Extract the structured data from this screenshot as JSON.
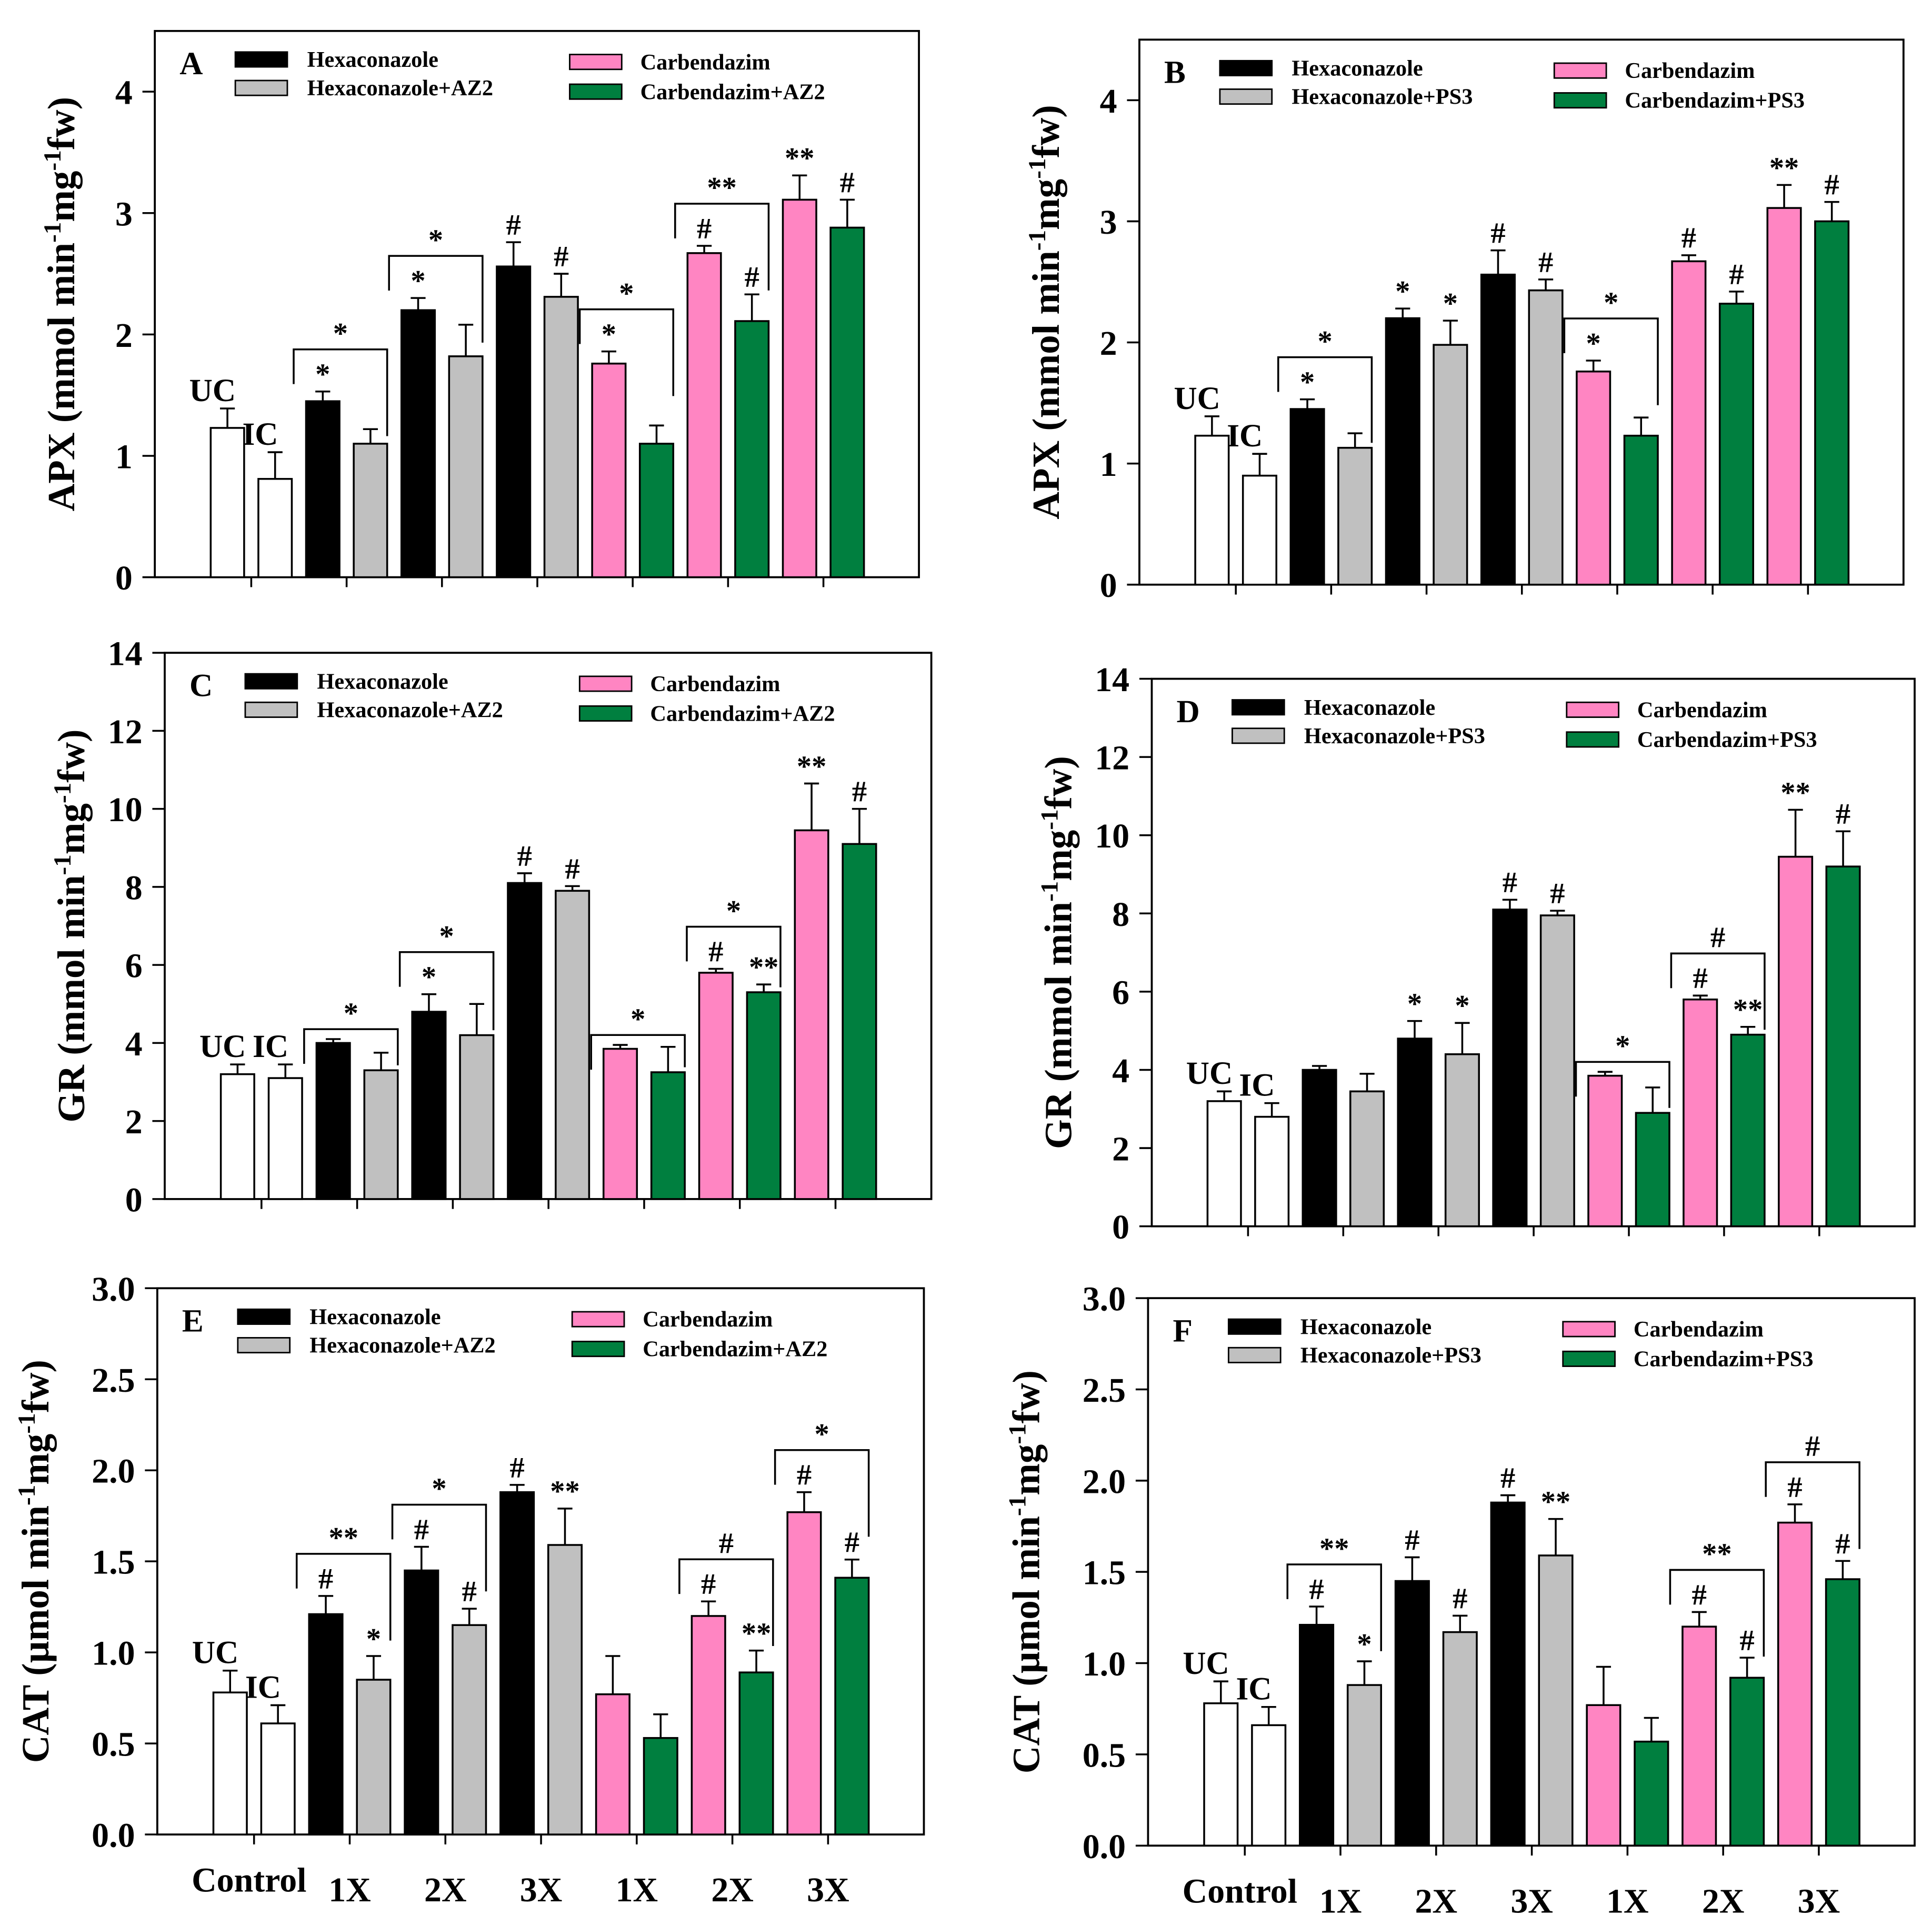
{
  "colors": {
    "Control": "#ffffff",
    "Hexaconazole": "#000000",
    "HexaBio": "#c0c0c0",
    "Carbendazim": "#ff85c2",
    "CarbBio": "#007f3f"
  },
  "chart_data": [
    {
      "type": "bar",
      "panel": "A",
      "ylim": [
        0,
        4.5
      ],
      "yticks": [
        "0",
        "1",
        "2",
        "3",
        "4"
      ],
      "ytick_values": [
        0,
        1,
        2,
        3,
        4
      ],
      "ylabel_parts": [
        "APX (mmol min",
        "-1",
        "mg",
        "-1",
        "fw)"
      ],
      "legend": [
        "Hexaconazole",
        "Hexaconazole+AZ2",
        "Carbendazim",
        "Carbendazim+AZ2"
      ],
      "bars": [
        {
          "name": "UC",
          "group": "Control",
          "values": 1.23,
          "err": 0.16,
          "label": "UC"
        },
        {
          "name": "IC",
          "group": "Control",
          "values": 0.81,
          "err": 0.22,
          "label": "IC"
        },
        {
          "name": "Hexaconazole 1X",
          "group": "Hexaconazole",
          "values": 1.45,
          "err": 0.08,
          "label": "*"
        },
        {
          "name": "Hexaconazole+AZ2 1X",
          "group": "HexaBio",
          "values": 1.1,
          "err": 0.12,
          "label": ""
        },
        {
          "name": "Hexaconazole 2X",
          "group": "Hexaconazole",
          "values": 2.2,
          "err": 0.1,
          "label": "*"
        },
        {
          "name": "Hexaconazole+AZ2 2X",
          "group": "HexaBio",
          "values": 1.82,
          "err": 0.26,
          "label": ""
        },
        {
          "name": "Hexaconazole 3X",
          "group": "Hexaconazole",
          "values": 2.56,
          "err": 0.2,
          "label": "#"
        },
        {
          "name": "Hexaconazole+AZ2 3X",
          "group": "HexaBio",
          "values": 2.31,
          "err": 0.19,
          "label": "#"
        },
        {
          "name": "Carbendazim 1X",
          "group": "Carbendazim",
          "values": 1.76,
          "err": 0.1,
          "label": "*"
        },
        {
          "name": "Carbendazim+AZ2 1X",
          "group": "CarbBio",
          "values": 1.1,
          "err": 0.15,
          "label": ""
        },
        {
          "name": "Carbendazim 2X",
          "group": "Carbendazim",
          "values": 2.67,
          "err": 0.06,
          "label": "#"
        },
        {
          "name": "Carbendazim+AZ2 2X",
          "group": "CarbBio",
          "values": 2.11,
          "err": 0.22,
          "label": "#"
        },
        {
          "name": "Carbendazim 3X",
          "group": "Carbendazim",
          "values": 3.11,
          "err": 0.2,
          "label": "**"
        },
        {
          "name": "Carbendazim+AZ2 3X",
          "group": "CarbBio",
          "values": 2.88,
          "err": 0.23,
          "label": "#"
        }
      ],
      "brackets": [
        {
          "from": 2,
          "to": 3,
          "label": "*"
        },
        {
          "from": 4,
          "to": 5,
          "label": "*"
        },
        {
          "from": 8,
          "to": 9,
          "label": "*"
        },
        {
          "from": 10,
          "to": 11,
          "label": "**"
        }
      ],
      "xticks": []
    },
    {
      "type": "bar",
      "panel": "B",
      "ylim": [
        0,
        4.5
      ],
      "yticks": [
        "0",
        "1",
        "2",
        "3",
        "4"
      ],
      "ytick_values": [
        0,
        1,
        2,
        3,
        4
      ],
      "ylabel_parts": [
        "APX (mmol min",
        "-1",
        "mg",
        "-1",
        "fw)"
      ],
      "legend": [
        "Hexaconazole",
        "Hexaconazole+PS3",
        "Carbendazim",
        "Carbendazim+PS3"
      ],
      "bars": [
        {
          "name": "UC",
          "group": "Control",
          "values": 1.23,
          "err": 0.16,
          "label": "UC"
        },
        {
          "name": "IC",
          "group": "Control",
          "values": 0.9,
          "err": 0.18,
          "label": "IC"
        },
        {
          "name": "Hexaconazole 1X",
          "group": "Hexaconazole",
          "values": 1.45,
          "err": 0.08,
          "label": "*"
        },
        {
          "name": "Hexaconazole+PS3 1X",
          "group": "HexaBio",
          "values": 1.13,
          "err": 0.12,
          "label": ""
        },
        {
          "name": "Hexaconazole 2X",
          "group": "Hexaconazole",
          "values": 2.2,
          "err": 0.08,
          "label": "*"
        },
        {
          "name": "Hexaconazole+PS3 2X",
          "group": "HexaBio",
          "values": 1.98,
          "err": 0.2,
          "label": "*"
        },
        {
          "name": "Hexaconazole 3X",
          "group": "Hexaconazole",
          "values": 2.56,
          "err": 0.2,
          "label": "#"
        },
        {
          "name": "Hexaconazole+PS3 3X",
          "group": "HexaBio",
          "values": 2.43,
          "err": 0.09,
          "label": "#"
        },
        {
          "name": "Carbendazim 1X",
          "group": "Carbendazim",
          "values": 1.76,
          "err": 0.09,
          "label": "*"
        },
        {
          "name": "Carbendazim+PS3 1X",
          "group": "CarbBio",
          "values": 1.23,
          "err": 0.15,
          "label": ""
        },
        {
          "name": "Carbendazim 2X",
          "group": "Carbendazim",
          "values": 2.67,
          "err": 0.05,
          "label": "#"
        },
        {
          "name": "Carbendazim+PS3 2X",
          "group": "CarbBio",
          "values": 2.32,
          "err": 0.1,
          "label": "#"
        },
        {
          "name": "Carbendazim 3X",
          "group": "Carbendazim",
          "values": 3.11,
          "err": 0.19,
          "label": "**"
        },
        {
          "name": "Carbendazim+PS3 3X",
          "group": "CarbBio",
          "values": 3.0,
          "err": 0.16,
          "label": "#"
        }
      ],
      "brackets": [
        {
          "from": 2,
          "to": 3,
          "label": "*"
        },
        {
          "from": 8,
          "to": 9,
          "label": "*"
        }
      ],
      "xticks": []
    },
    {
      "type": "bar",
      "panel": "C",
      "ylim": [
        0,
        14
      ],
      "yticks": [
        "0",
        "2",
        "4",
        "6",
        "8",
        "10",
        "12",
        "14"
      ],
      "ytick_values": [
        0,
        2,
        4,
        6,
        8,
        10,
        12,
        14
      ],
      "ylabel_parts": [
        "GR (mmol min",
        "-1",
        "mg",
        "-1",
        "fw)"
      ],
      "legend": [
        "Hexaconazole",
        "Hexaconazole+AZ2",
        "Carbendazim",
        "Carbendazim+AZ2"
      ],
      "bars": [
        {
          "name": "UC",
          "group": "Control",
          "values": 3.2,
          "err": 0.25,
          "label": "UC"
        },
        {
          "name": "IC",
          "group": "Control",
          "values": 3.1,
          "err": 0.35,
          "label": "IC"
        },
        {
          "name": "Hexaconazole 1X",
          "group": "Hexaconazole",
          "values": 4.0,
          "err": 0.1,
          "label": ""
        },
        {
          "name": "Hexaconazole+AZ2 1X",
          "group": "HexaBio",
          "values": 3.3,
          "err": 0.45,
          "label": ""
        },
        {
          "name": "Hexaconazole 2X",
          "group": "Hexaconazole",
          "values": 4.8,
          "err": 0.45,
          "label": "*"
        },
        {
          "name": "Hexaconazole+AZ2 2X",
          "group": "HexaBio",
          "values": 4.2,
          "err": 0.8,
          "label": ""
        },
        {
          "name": "Hexaconazole 3X",
          "group": "Hexaconazole",
          "values": 8.1,
          "err": 0.25,
          "label": "#"
        },
        {
          "name": "Hexaconazole+AZ2 3X",
          "group": "HexaBio",
          "values": 7.9,
          "err": 0.12,
          "label": "#"
        },
        {
          "name": "Carbendazim 1X",
          "group": "Carbendazim",
          "values": 3.85,
          "err": 0.1,
          "label": ""
        },
        {
          "name": "Carbendazim+AZ2 1X",
          "group": "CarbBio",
          "values": 3.25,
          "err": 0.65,
          "label": ""
        },
        {
          "name": "Carbendazim 2X",
          "group": "Carbendazim",
          "values": 5.8,
          "err": 0.1,
          "label": "#"
        },
        {
          "name": "Carbendazim+AZ2 2X",
          "group": "CarbBio",
          "values": 5.3,
          "err": 0.2,
          "label": "**"
        },
        {
          "name": "Carbendazim 3X",
          "group": "Carbendazim",
          "values": 9.45,
          "err": 1.2,
          "label": "**"
        },
        {
          "name": "Carbendazim+AZ2 3X",
          "group": "CarbBio",
          "values": 9.1,
          "err": 0.9,
          "label": "#"
        }
      ],
      "brackets": [
        {
          "from": 2,
          "to": 3,
          "label": "*"
        },
        {
          "from": 4,
          "to": 5,
          "label": "*"
        },
        {
          "from": 8,
          "to": 9,
          "label": "*"
        },
        {
          "from": 10,
          "to": 11,
          "label": "*"
        }
      ],
      "xticks": []
    },
    {
      "type": "bar",
      "panel": "D",
      "ylim": [
        0,
        14
      ],
      "yticks": [
        "0",
        "2",
        "4",
        "6",
        "8",
        "10",
        "12",
        "14"
      ],
      "ytick_values": [
        0,
        2,
        4,
        6,
        8,
        10,
        12,
        14
      ],
      "ylabel_parts": [
        "GR (mmol min",
        "-1",
        "mg",
        "-1",
        "fw)"
      ],
      "legend": [
        "Hexaconazole",
        "Hexaconazole+PS3",
        "Carbendazim",
        "Carbendazim+PS3"
      ],
      "bars": [
        {
          "name": "UC",
          "group": "Control",
          "values": 3.2,
          "err": 0.25,
          "label": "UC"
        },
        {
          "name": "IC",
          "group": "Control",
          "values": 2.8,
          "err": 0.35,
          "label": "IC"
        },
        {
          "name": "Hexaconazole 1X",
          "group": "Hexaconazole",
          "values": 4.0,
          "err": 0.1,
          "label": ""
        },
        {
          "name": "Hexaconazole+PS3 1X",
          "group": "HexaBio",
          "values": 3.45,
          "err": 0.45,
          "label": ""
        },
        {
          "name": "Hexaconazole 2X",
          "group": "Hexaconazole",
          "values": 4.8,
          "err": 0.45,
          "label": "*"
        },
        {
          "name": "Hexaconazole+PS3 2X",
          "group": "HexaBio",
          "values": 4.4,
          "err": 0.8,
          "label": "*"
        },
        {
          "name": "Hexaconazole 3X",
          "group": "Hexaconazole",
          "values": 8.1,
          "err": 0.25,
          "label": "#"
        },
        {
          "name": "Hexaconazole+PS3 3X",
          "group": "HexaBio",
          "values": 7.95,
          "err": 0.12,
          "label": "#"
        },
        {
          "name": "Carbendazim 1X",
          "group": "Carbendazim",
          "values": 3.85,
          "err": 0.1,
          "label": ""
        },
        {
          "name": "Carbendazim+PS3 1X",
          "group": "CarbBio",
          "values": 2.9,
          "err": 0.65,
          "label": ""
        },
        {
          "name": "Carbendazim 2X",
          "group": "Carbendazim",
          "values": 5.8,
          "err": 0.1,
          "label": "#"
        },
        {
          "name": "Carbendazim+PS3 2X",
          "group": "CarbBio",
          "values": 4.9,
          "err": 0.2,
          "label": "**"
        },
        {
          "name": "Carbendazim 3X",
          "group": "Carbendazim",
          "values": 9.45,
          "err": 1.2,
          "label": "**"
        },
        {
          "name": "Carbendazim+PS3 3X",
          "group": "CarbBio",
          "values": 9.2,
          "err": 0.9,
          "label": "#"
        }
      ],
      "brackets": [
        {
          "from": 8,
          "to": 9,
          "label": "*"
        },
        {
          "from": 10,
          "to": 11,
          "label": "#"
        }
      ],
      "xticks": []
    },
    {
      "type": "bar",
      "panel": "E",
      "ylim": [
        0,
        3.0
      ],
      "yticks": [
        "0.0",
        "0.5",
        "1.0",
        "1.5",
        "2.0",
        "2.5",
        "3.0"
      ],
      "ytick_values": [
        0,
        0.5,
        1,
        1.5,
        2,
        2.5,
        3
      ],
      "ylabel_parts": [
        "CAT (µmol min",
        "-1",
        "mg",
        "-1",
        "fw)"
      ],
      "legend": [
        "Hexaconazole",
        "Hexaconazole+AZ2",
        "Carbendazim",
        "Carbendazim+AZ2"
      ],
      "bars": [
        {
          "name": "UC",
          "group": "Control",
          "values": 0.78,
          "err": 0.12,
          "label": "UC"
        },
        {
          "name": "IC",
          "group": "Control",
          "values": 0.61,
          "err": 0.1,
          "label": "IC"
        },
        {
          "name": "Hexaconazole 1X",
          "group": "Hexaconazole",
          "values": 1.21,
          "err": 0.1,
          "label": "#"
        },
        {
          "name": "Hexaconazole+AZ2 1X",
          "group": "HexaBio",
          "values": 0.85,
          "err": 0.13,
          "label": "*"
        },
        {
          "name": "Hexaconazole 2X",
          "group": "Hexaconazole",
          "values": 1.45,
          "err": 0.13,
          "label": "#"
        },
        {
          "name": "Hexaconazole+AZ2 2X",
          "group": "HexaBio",
          "values": 1.15,
          "err": 0.09,
          "label": "#"
        },
        {
          "name": "Hexaconazole 3X",
          "group": "Hexaconazole",
          "values": 1.88,
          "err": 0.04,
          "label": "#"
        },
        {
          "name": "Hexaconazole+AZ2 3X",
          "group": "HexaBio",
          "values": 1.59,
          "err": 0.2,
          "label": "**"
        },
        {
          "name": "Carbendazim 1X",
          "group": "Carbendazim",
          "values": 0.77,
          "err": 0.21,
          "label": ""
        },
        {
          "name": "Carbendazim+AZ2 1X",
          "group": "CarbBio",
          "values": 0.53,
          "err": 0.13,
          "label": ""
        },
        {
          "name": "Carbendazim 2X",
          "group": "Carbendazim",
          "values": 1.2,
          "err": 0.08,
          "label": "#"
        },
        {
          "name": "Carbendazim+AZ2 2X",
          "group": "CarbBio",
          "values": 0.89,
          "err": 0.12,
          "label": "**"
        },
        {
          "name": "Carbendazim 3X",
          "group": "Carbendazim",
          "values": 1.77,
          "err": 0.11,
          "label": "#"
        },
        {
          "name": "Carbendazim+AZ2 3X",
          "group": "CarbBio",
          "values": 1.41,
          "err": 0.1,
          "label": "#"
        }
      ],
      "brackets": [
        {
          "from": 2,
          "to": 3,
          "label": "**"
        },
        {
          "from": 4,
          "to": 5,
          "label": "*"
        },
        {
          "from": 10,
          "to": 11,
          "label": "#"
        },
        {
          "from": 12,
          "to": 13,
          "label": "*"
        }
      ],
      "xticks": [
        "Control",
        "1X",
        "2X",
        "3X",
        "1X",
        "2X",
        "3X"
      ]
    },
    {
      "type": "bar",
      "panel": "F",
      "ylim": [
        0,
        3.0
      ],
      "yticks": [
        "0.0",
        "0.5",
        "1.0",
        "1.5",
        "2.0",
        "2.5",
        "3.0"
      ],
      "ytick_values": [
        0,
        0.5,
        1,
        1.5,
        2,
        2.5,
        3
      ],
      "ylabel_parts": [
        "CAT (µmol min",
        "-1",
        "mg",
        "-1",
        "fw)"
      ],
      "legend": [
        "Hexaconazole",
        "Hexaconazole+PS3",
        "Carbendazim",
        "Carbendazim+PS3"
      ],
      "bars": [
        {
          "name": "UC",
          "group": "Control",
          "values": 0.78,
          "err": 0.12,
          "label": "UC"
        },
        {
          "name": "IC",
          "group": "Control",
          "values": 0.66,
          "err": 0.1,
          "label": "IC"
        },
        {
          "name": "Hexaconazole 1X",
          "group": "Hexaconazole",
          "values": 1.21,
          "err": 0.1,
          "label": "#"
        },
        {
          "name": "Hexaconazole+PS3 1X",
          "group": "HexaBio",
          "values": 0.88,
          "err": 0.13,
          "label": "*"
        },
        {
          "name": "Hexaconazole 2X",
          "group": "Hexaconazole",
          "values": 1.45,
          "err": 0.13,
          "label": "#"
        },
        {
          "name": "Hexaconazole+PS3 2X",
          "group": "HexaBio",
          "values": 1.17,
          "err": 0.09,
          "label": "#"
        },
        {
          "name": "Hexaconazole 3X",
          "group": "Hexaconazole",
          "values": 1.88,
          "err": 0.04,
          "label": "#"
        },
        {
          "name": "Hexaconazole+PS3 3X",
          "group": "HexaBio",
          "values": 1.59,
          "err": 0.2,
          "label": "**"
        },
        {
          "name": "Carbendazim 1X",
          "group": "Carbendazim",
          "values": 0.77,
          "err": 0.21,
          "label": ""
        },
        {
          "name": "Carbendazim+PS3 1X",
          "group": "CarbBio",
          "values": 0.57,
          "err": 0.13,
          "label": ""
        },
        {
          "name": "Carbendazim 2X",
          "group": "Carbendazim",
          "values": 1.2,
          "err": 0.08,
          "label": "#"
        },
        {
          "name": "Carbendazim+PS3 2X",
          "group": "CarbBio",
          "values": 0.92,
          "err": 0.11,
          "label": "#"
        },
        {
          "name": "Carbendazim 3X",
          "group": "Carbendazim",
          "values": 1.77,
          "err": 0.1,
          "label": "#"
        },
        {
          "name": "Carbendazim+PS3 3X",
          "group": "CarbBio",
          "values": 1.46,
          "err": 0.1,
          "label": "#"
        }
      ],
      "brackets": [
        {
          "from": 2,
          "to": 3,
          "label": "**"
        },
        {
          "from": 10,
          "to": 11,
          "label": "**"
        },
        {
          "from": 12,
          "to": 13,
          "label": "#"
        }
      ],
      "xticks": [
        "Control",
        "1X",
        "2X",
        "3X",
        "1X",
        "2X",
        "3X"
      ]
    }
  ]
}
